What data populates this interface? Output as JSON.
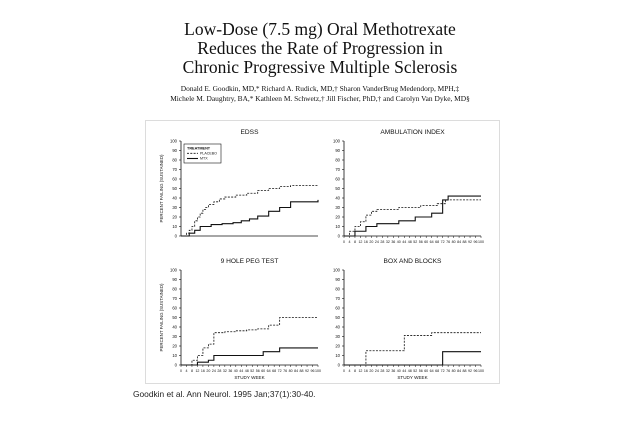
{
  "header": {
    "title_lines": [
      "Low-Dose (7.5 mg) Oral Methotrexate",
      "Reduces the Rate of Progression in",
      "Chronic Progressive Multiple Sclerosis"
    ],
    "author_lines": [
      "Donald E. Goodkin, MD,* Richard A. Rudick, MD,† Sharon VanderBrug Medendorp, MPH,‡",
      "Michele M. Daughtry, BA,* Kathleen M. Schwetz,† Jill Fischer, PhD,† and Carolyn Van Dyke, MD§"
    ]
  },
  "citation": "Goodkin et al. Ann Neurol. 1995 Jan;37(1):30-40.",
  "colors": {
    "line": "#111111",
    "text": "#111111"
  },
  "chart_data": [
    {
      "type": "line",
      "step": true,
      "title": "EDSS",
      "xlabel": "",
      "ylabel": "PERCENT FAILING (SUSTAINED)",
      "xlim": [
        0,
        100
      ],
      "ylim": [
        0,
        100
      ],
      "xticks_shown": false,
      "legend": {
        "title": "TREATMENT",
        "position": "top-left"
      },
      "series": [
        {
          "name": "PLACEBO",
          "style": "dashed",
          "x": [
            0,
            4,
            6,
            8,
            10,
            12,
            14,
            16,
            18,
            20,
            24,
            28,
            32,
            40,
            48,
            56,
            64,
            72,
            80,
            100
          ],
          "y": [
            0,
            3,
            6,
            10,
            16,
            20,
            24,
            28,
            30,
            33,
            36,
            39,
            41,
            43,
            45,
            48,
            50,
            52,
            53,
            53
          ]
        },
        {
          "name": "MTX",
          "style": "solid",
          "x": [
            0,
            6,
            10,
            14,
            22,
            30,
            38,
            44,
            50,
            56,
            64,
            72,
            80,
            100
          ],
          "y": [
            0,
            3,
            6,
            10,
            12,
            13,
            14,
            16,
            18,
            21,
            26,
            30,
            36,
            38
          ]
        }
      ]
    },
    {
      "type": "line",
      "step": true,
      "title": "AMBULATION INDEX",
      "xlabel": "",
      "ylabel": "",
      "xlim": [
        0,
        100
      ],
      "ylim": [
        0,
        100
      ],
      "xticks_shown": true,
      "xticks": [
        0,
        4,
        8,
        12,
        16,
        20,
        24,
        28,
        32,
        36,
        40,
        44,
        48,
        52,
        56,
        60,
        64,
        68,
        72,
        76,
        80,
        84,
        88,
        92,
        96,
        100
      ],
      "series": [
        {
          "name": "PLACEBO",
          "style": "dashed",
          "x": [
            0,
            4,
            8,
            12,
            16,
            20,
            24,
            40,
            56,
            68,
            74,
            100
          ],
          "y": [
            0,
            5,
            10,
            15,
            22,
            26,
            28,
            30,
            32,
            34,
            38,
            38
          ]
        },
        {
          "name": "MTX",
          "style": "solid",
          "x": [
            0,
            8,
            16,
            24,
            40,
            52,
            64,
            72,
            76,
            100
          ],
          "y": [
            0,
            5,
            10,
            13,
            16,
            20,
            24,
            38,
            42,
            42
          ]
        }
      ]
    },
    {
      "type": "line",
      "step": true,
      "title": "9 HOLE PEG TEST",
      "xlabel": "STUDY WEEK",
      "ylabel": "PERCENT FAILING (SUSTAINED)",
      "xlim": [
        0,
        100
      ],
      "ylim": [
        0,
        100
      ],
      "xticks_shown": true,
      "xticks": [
        0,
        4,
        8,
        12,
        16,
        20,
        24,
        28,
        32,
        36,
        40,
        44,
        48,
        52,
        56,
        60,
        64,
        68,
        72,
        76,
        80,
        84,
        88,
        92,
        96,
        100
      ],
      "series": [
        {
          "name": "PLACEBO",
          "style": "dashed",
          "x": [
            0,
            8,
            12,
            16,
            20,
            24,
            32,
            40,
            48,
            56,
            64,
            72,
            100
          ],
          "y": [
            0,
            5,
            10,
            18,
            22,
            34,
            35,
            36,
            37,
            38,
            42,
            50,
            50
          ]
        },
        {
          "name": "MTX",
          "style": "solid",
          "x": [
            0,
            12,
            20,
            24,
            60,
            72,
            100
          ],
          "y": [
            0,
            3,
            5,
            10,
            14,
            18,
            18
          ]
        }
      ]
    },
    {
      "type": "line",
      "step": true,
      "title": "BOX AND BLOCKS",
      "xlabel": "STUDY WEEK",
      "ylabel": "",
      "xlim": [
        0,
        100
      ],
      "ylim": [
        0,
        100
      ],
      "xticks_shown": true,
      "xticks": [
        0,
        4,
        8,
        12,
        16,
        20,
        24,
        28,
        32,
        36,
        40,
        44,
        48,
        52,
        56,
        60,
        64,
        68,
        72,
        76,
        80,
        84,
        88,
        92,
        96,
        100
      ],
      "series": [
        {
          "name": "PLACEBO",
          "style": "dashed",
          "x": [
            0,
            16,
            44,
            64,
            100
          ],
          "y": [
            0,
            15,
            31,
            34,
            34
          ]
        },
        {
          "name": "MTX",
          "style": "solid",
          "x": [
            0,
            72,
            100
          ],
          "y": [
            0,
            14,
            14
          ]
        }
      ]
    }
  ]
}
